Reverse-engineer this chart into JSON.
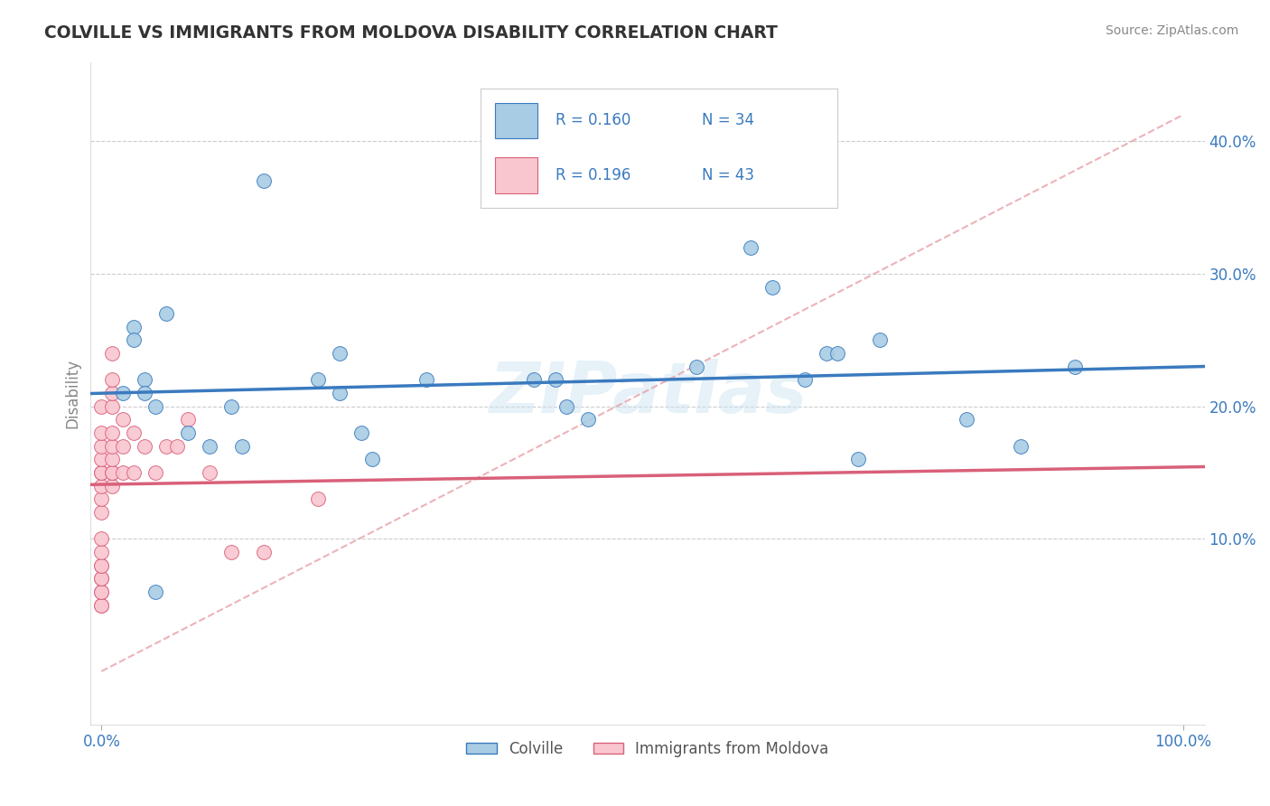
{
  "title": "COLVILLE VS IMMIGRANTS FROM MOLDOVA DISABILITY CORRELATION CHART",
  "source": "Source: ZipAtlas.com",
  "ylabel": "Disability",
  "watermark": "ZIPatlas",
  "legend_r1": "R = 0.160",
  "legend_n1": "N = 34",
  "legend_r2": "R = 0.196",
  "legend_n2": "N = 43",
  "colville_color": "#a8cce4",
  "moldova_color": "#f9c6d0",
  "colville_line_color": "#3a7abf",
  "moldova_line_color": "#d9607a",
  "ylim": [
    -0.04,
    0.46
  ],
  "xlim": [
    -0.01,
    1.02
  ],
  "colville_x": [
    0.02,
    0.03,
    0.03,
    0.04,
    0.04,
    0.05,
    0.06,
    0.08,
    0.1,
    0.12,
    0.13,
    0.15,
    0.2,
    0.22,
    0.22,
    0.24,
    0.25,
    0.3,
    0.4,
    0.42,
    0.43,
    0.45,
    0.55,
    0.6,
    0.62,
    0.65,
    0.67,
    0.68,
    0.7,
    0.72,
    0.8,
    0.85,
    0.9,
    0.05
  ],
  "colville_y": [
    0.21,
    0.26,
    0.25,
    0.22,
    0.21,
    0.2,
    0.27,
    0.18,
    0.17,
    0.2,
    0.17,
    0.37,
    0.22,
    0.24,
    0.21,
    0.18,
    0.16,
    0.22,
    0.22,
    0.22,
    0.2,
    0.19,
    0.23,
    0.32,
    0.29,
    0.22,
    0.24,
    0.24,
    0.16,
    0.25,
    0.19,
    0.17,
    0.23,
    0.06
  ],
  "moldova_x": [
    0.0,
    0.0,
    0.0,
    0.0,
    0.0,
    0.0,
    0.0,
    0.0,
    0.0,
    0.0,
    0.0,
    0.0,
    0.0,
    0.0,
    0.0,
    0.0,
    0.0,
    0.0,
    0.0,
    0.01,
    0.01,
    0.01,
    0.01,
    0.01,
    0.01,
    0.01,
    0.01,
    0.01,
    0.01,
    0.02,
    0.02,
    0.02,
    0.03,
    0.03,
    0.04,
    0.05,
    0.06,
    0.07,
    0.08,
    0.1,
    0.12,
    0.15,
    0.2
  ],
  "moldova_y": [
    0.05,
    0.05,
    0.06,
    0.06,
    0.07,
    0.07,
    0.08,
    0.08,
    0.09,
    0.1,
    0.12,
    0.13,
    0.14,
    0.15,
    0.15,
    0.16,
    0.17,
    0.18,
    0.2,
    0.14,
    0.15,
    0.15,
    0.16,
    0.17,
    0.18,
    0.2,
    0.21,
    0.22,
    0.24,
    0.15,
    0.17,
    0.19,
    0.15,
    0.18,
    0.17,
    0.15,
    0.17,
    0.17,
    0.19,
    0.15,
    0.09,
    0.09,
    0.13
  ],
  "yticks": [
    0.1,
    0.2,
    0.3,
    0.4
  ],
  "ytick_labels": [
    "10.0%",
    "20.0%",
    "30.0%",
    "40.0%"
  ],
  "background_color": "#ffffff",
  "grid_color": "#cccccc",
  "title_color": "#333333",
  "axis_color": "#888888",
  "legend_text_color": "#3a7abf",
  "legend_text_color2": "#333333",
  "source_color": "#888888",
  "dashed_line_color": "#e8a0a8"
}
